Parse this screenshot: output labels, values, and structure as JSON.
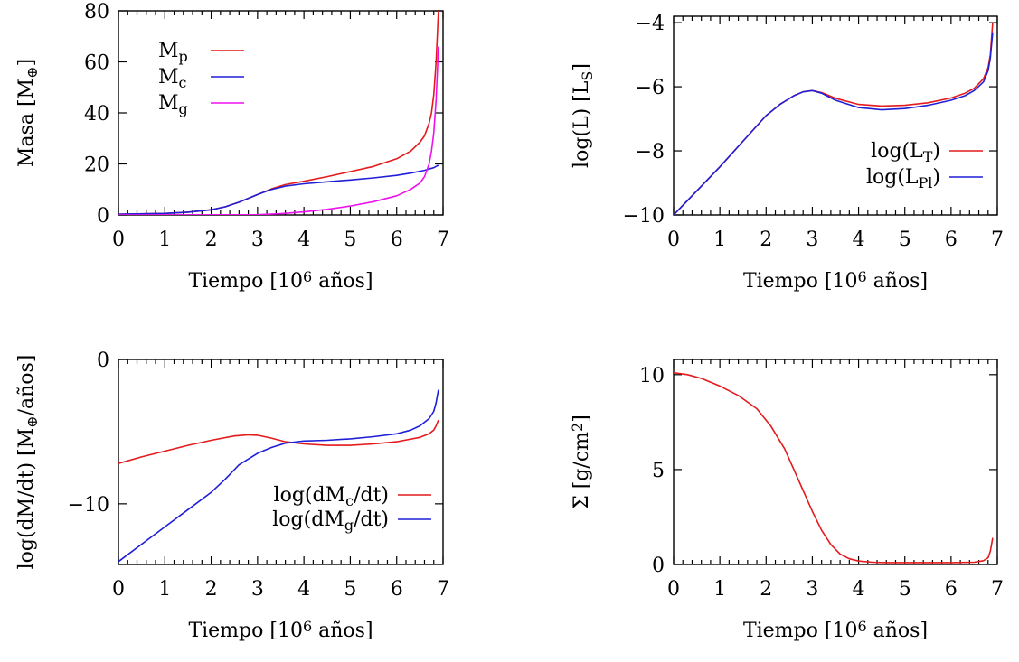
{
  "chart_data": [
    {
      "type": "line",
      "xlabel": "Tiempo [10",
      "xlabel_sup": "6",
      "xlabel_tail": " años]",
      "ylabel": "Masa [M",
      "ylabel_sub": "⊕",
      "ylabel_tail": "]",
      "xlim": [
        0,
        7
      ],
      "ylim": [
        0,
        80
      ],
      "xticks": [
        "0",
        "1",
        "2",
        "3",
        "4",
        "5",
        "6",
        "7"
      ],
      "yticks": [
        "0",
        "20",
        "40",
        "60",
        "80"
      ],
      "legend_position": "top-left",
      "series": [
        {
          "name": "M",
          "name_sub": "p",
          "color": "#e41a1c",
          "x": [
            0,
            1,
            1.5,
            2,
            2.3,
            2.6,
            3,
            3.3,
            3.6,
            4,
            4.5,
            5,
            5.5,
            6,
            6.3,
            6.5,
            6.6,
            6.7,
            6.75,
            6.8,
            6.85,
            6.9
          ],
          "y": [
            0.3,
            0.6,
            1.1,
            2,
            3.2,
            5,
            8,
            10.2,
            11.9,
            13.2,
            15,
            17,
            19,
            22,
            25,
            28.5,
            31,
            36,
            40,
            47,
            60,
            80
          ]
        },
        {
          "name": "M",
          "name_sub": "c",
          "color": "#1f1fd8",
          "x": [
            0,
            1,
            1.5,
            2,
            2.3,
            2.6,
            3,
            3.3,
            3.6,
            4,
            4.5,
            5,
            5.5,
            6,
            6.3,
            6.6,
            6.8,
            6.9
          ],
          "y": [
            0.3,
            0.6,
            1.1,
            2,
            3.2,
            5,
            8,
            10,
            11.3,
            12.2,
            13,
            13.7,
            14.5,
            15.5,
            16.4,
            17.5,
            18.5,
            19.5
          ]
        },
        {
          "name": "M",
          "name_sub": "g",
          "color": "#ee11ee",
          "x": [
            0,
            3,
            3.5,
            4,
            4.5,
            5,
            5.5,
            6,
            6.3,
            6.5,
            6.6,
            6.7,
            6.75,
            6.8,
            6.85,
            6.9
          ],
          "y": [
            0,
            0.1,
            0.5,
            1.2,
            2.2,
            3.5,
            5.2,
            7.5,
            10,
            12.5,
            15,
            20,
            25,
            32,
            45,
            66
          ]
        }
      ]
    },
    {
      "type": "line",
      "xlabel": "Tiempo [10",
      "xlabel_sup": "6",
      "xlabel_tail": " años]",
      "ylabel": "log(L) [L",
      "ylabel_sub": "S",
      "ylabel_tail": "]",
      "xlim": [
        0,
        7
      ],
      "ylim": [
        -10,
        -3.8
      ],
      "xticks": [
        "0",
        "1",
        "2",
        "3",
        "4",
        "5",
        "6",
        "7"
      ],
      "ytick_values": [
        -10,
        -8,
        -6,
        -4
      ],
      "yticks": [
        "−10",
        "−8",
        "−6",
        "−4"
      ],
      "legend_position": "bottom-right",
      "series": [
        {
          "name": "log(L",
          "name_sub": "T",
          "name_tail": ")",
          "color": "#e41a1c",
          "x": [
            0,
            0.5,
            1,
            1.5,
            2,
            2.3,
            2.6,
            2.8,
            3,
            3.2,
            3.5,
            4,
            4.5,
            5,
            5.5,
            6,
            6.3,
            6.5,
            6.7,
            6.8,
            6.85,
            6.9
          ],
          "y": [
            -10,
            -9.25,
            -8.5,
            -7.7,
            -6.9,
            -6.55,
            -6.28,
            -6.16,
            -6.12,
            -6.18,
            -6.36,
            -6.55,
            -6.6,
            -6.58,
            -6.5,
            -6.35,
            -6.2,
            -6.05,
            -5.75,
            -5.4,
            -5,
            -4
          ]
        },
        {
          "name": "log(L",
          "name_sub": "Pl",
          "name_tail": ")",
          "color": "#1f1fd8",
          "x": [
            0,
            0.5,
            1,
            1.5,
            2,
            2.3,
            2.6,
            2.8,
            3,
            3.2,
            3.5,
            4,
            4.5,
            5,
            5.5,
            6,
            6.3,
            6.5,
            6.7,
            6.8,
            6.85,
            6.9
          ],
          "y": [
            -10,
            -9.25,
            -8.5,
            -7.7,
            -6.9,
            -6.55,
            -6.28,
            -6.16,
            -6.12,
            -6.2,
            -6.42,
            -6.65,
            -6.72,
            -6.68,
            -6.58,
            -6.42,
            -6.28,
            -6.12,
            -5.85,
            -5.5,
            -5.1,
            -4.3
          ]
        }
      ]
    },
    {
      "type": "line",
      "xlabel": "Tiempo [10",
      "xlabel_sup": "6",
      "xlabel_tail": " años]",
      "ylabel": "log(dM/dt)  [M",
      "ylabel_sub": "⊕",
      "ylabel_tail": "/años]",
      "xlim": [
        0,
        7
      ],
      "ylim": [
        -14.2,
        0
      ],
      "xticks": [
        "0",
        "1",
        "2",
        "3",
        "4",
        "5",
        "6",
        "7"
      ],
      "ytick_values": [
        -10,
        0
      ],
      "yticks": [
        "−10",
        "0"
      ],
      "legend_position": "bottom-right",
      "series": [
        {
          "name": "log(dM",
          "name_sub": "c",
          "name_tail": "/dt)",
          "color": "#e41a1c",
          "x": [
            0,
            0.5,
            1,
            1.5,
            2,
            2.5,
            2.8,
            3,
            3.3,
            3.6,
            4,
            4.5,
            5,
            5.5,
            6,
            6.5,
            6.7,
            6.8,
            6.85,
            6.9
          ],
          "y": [
            -7.2,
            -6.75,
            -6.35,
            -5.95,
            -5.6,
            -5.3,
            -5.22,
            -5.25,
            -5.45,
            -5.7,
            -5.85,
            -5.95,
            -5.95,
            -5.85,
            -5.7,
            -5.4,
            -5.15,
            -4.9,
            -4.6,
            -4.2
          ]
        },
        {
          "name": "log(dM",
          "name_sub": "g",
          "name_tail": "/dt)",
          "color": "#1f1fd8",
          "x": [
            0,
            0.5,
            1,
            1.5,
            2,
            2.3,
            2.6,
            3,
            3.3,
            3.6,
            4,
            4.5,
            5,
            5.5,
            6,
            6.3,
            6.5,
            6.7,
            6.8,
            6.85,
            6.9
          ],
          "y": [
            -14,
            -12.8,
            -11.6,
            -10.4,
            -9.2,
            -8.3,
            -7.3,
            -6.5,
            -6.1,
            -5.8,
            -5.65,
            -5.6,
            -5.5,
            -5.35,
            -5.15,
            -4.9,
            -4.6,
            -4.1,
            -3.6,
            -3,
            -2.1
          ]
        }
      ]
    },
    {
      "type": "line",
      "xlabel": "Tiempo [10",
      "xlabel_sup": "6",
      "xlabel_tail": " años]",
      "ylabel": "Σ [g/cm",
      "ylabel_sup": "2",
      "ylabel_tail": "]",
      "xlim": [
        0,
        7
      ],
      "ylim": [
        0,
        10.8
      ],
      "xticks": [
        "0",
        "1",
        "2",
        "3",
        "4",
        "5",
        "6",
        "7"
      ],
      "ytick_values": [
        0,
        5,
        10
      ],
      "yticks": [
        "0",
        "5",
        "10"
      ],
      "series": [
        {
          "color": "#e41a1c",
          "x": [
            0,
            0.3,
            0.6,
            1,
            1.4,
            1.8,
            2.1,
            2.4,
            2.6,
            2.8,
            3,
            3.2,
            3.4,
            3.6,
            3.8,
            4,
            4.3,
            4.6,
            5,
            5.5,
            6,
            6.5,
            6.7,
            6.8,
            6.85,
            6.9
          ],
          "y": [
            10.1,
            10,
            9.8,
            9.4,
            8.9,
            8.2,
            7.3,
            6.1,
            5,
            3.9,
            2.8,
            1.8,
            1.05,
            0.55,
            0.3,
            0.18,
            0.12,
            0.1,
            0.1,
            0.1,
            0.1,
            0.12,
            0.2,
            0.35,
            0.7,
            1.4
          ]
        }
      ]
    }
  ]
}
